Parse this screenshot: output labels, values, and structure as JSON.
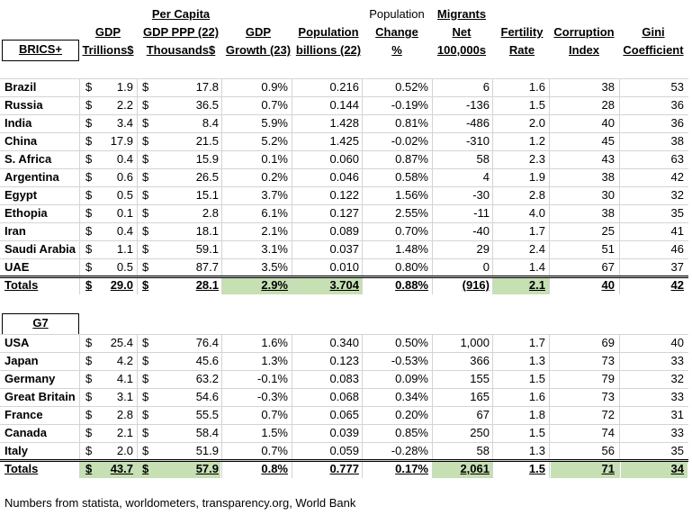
{
  "headers": {
    "group_label": "BRICS+",
    "gdp": [
      "GDP",
      "Trillions$"
    ],
    "per_capita": [
      "Per Capita",
      "GDP PPP (22)",
      "Thousands$"
    ],
    "growth": [
      "GDP",
      "Growth (23)"
    ],
    "population": [
      "Population",
      "billions (22)"
    ],
    "pop_change": [
      "Population",
      "Change",
      "%"
    ],
    "migrants": [
      "Migrants",
      "Net",
      "100,000s"
    ],
    "fertility": [
      "Fertility",
      "Rate"
    ],
    "corruption": [
      "Corruption",
      "Index"
    ],
    "gini": [
      "Gini",
      "Coefficient"
    ]
  },
  "currency_symbol": "$",
  "brics": {
    "label": "BRICS+",
    "rows": [
      {
        "country": "Brazil",
        "gdp": "1.9",
        "per_capita": "17.8",
        "growth": "0.9%",
        "population": "0.216",
        "pop_change": "0.52%",
        "migrants": "6",
        "fertility": "1.6",
        "corruption": "38",
        "gini": "53"
      },
      {
        "country": "Russia",
        "gdp": "2.2",
        "per_capita": "36.5",
        "growth": "0.7%",
        "population": "0.144",
        "pop_change": "-0.19%",
        "migrants": "-136",
        "fertility": "1.5",
        "corruption": "28",
        "gini": "36"
      },
      {
        "country": "India",
        "gdp": "3.4",
        "per_capita": "8.4",
        "growth": "5.9%",
        "population": "1.428",
        "pop_change": "0.81%",
        "migrants": "-486",
        "fertility": "2.0",
        "corruption": "40",
        "gini": "36"
      },
      {
        "country": "China",
        "gdp": "17.9",
        "per_capita": "21.5",
        "growth": "5.2%",
        "population": "1.425",
        "pop_change": "-0.02%",
        "migrants": "-310",
        "fertility": "1.2",
        "corruption": "45",
        "gini": "38"
      },
      {
        "country": "S. Africa",
        "gdp": "0.4",
        "per_capita": "15.9",
        "growth": "0.1%",
        "population": "0.060",
        "pop_change": "0.87%",
        "migrants": "58",
        "fertility": "2.3",
        "corruption": "43",
        "gini": "63"
      },
      {
        "country": "Argentina",
        "gdp": "0.6",
        "per_capita": "26.5",
        "growth": "0.2%",
        "population": "0.046",
        "pop_change": "0.58%",
        "migrants": "4",
        "fertility": "1.9",
        "corruption": "38",
        "gini": "42"
      },
      {
        "country": "Egypt",
        "gdp": "0.5",
        "per_capita": "15.1",
        "growth": "3.7%",
        "population": "0.122",
        "pop_change": "1.56%",
        "migrants": "-30",
        "fertility": "2.8",
        "corruption": "30",
        "gini": "32"
      },
      {
        "country": "Ethopia",
        "gdp": "0.1",
        "per_capita": "2.8",
        "growth": "6.1%",
        "population": "0.127",
        "pop_change": "2.55%",
        "migrants": "-11",
        "fertility": "4.0",
        "corruption": "38",
        "gini": "35"
      },
      {
        "country": "Iran",
        "gdp": "0.4",
        "per_capita": "18.1",
        "growth": "2.1%",
        "population": "0.089",
        "pop_change": "0.70%",
        "migrants": "-40",
        "fertility": "1.7",
        "corruption": "25",
        "gini": "41"
      },
      {
        "country": "Saudi Arabia",
        "gdp": "1.1",
        "per_capita": "59.1",
        "growth": "3.1%",
        "population": "0.037",
        "pop_change": "1.48%",
        "migrants": "29",
        "fertility": "2.4",
        "corruption": "51",
        "gini": "46"
      },
      {
        "country": "UAE",
        "gdp": "0.5",
        "per_capita": "87.7",
        "growth": "3.5%",
        "population": "0.010",
        "pop_change": "0.80%",
        "migrants": "0",
        "fertility": "1.4",
        "corruption": "67",
        "gini": "37"
      }
    ],
    "totals": {
      "label": "Totals",
      "gdp": "29.0",
      "per_capita": "28.1",
      "growth": "2.9%",
      "population": "3.704",
      "pop_change": "0.88%",
      "migrants": "(916)",
      "fertility": "2.1",
      "corruption": "40",
      "gini": "42"
    },
    "highlight_color": "#c6e0b4",
    "highlighted_totals": [
      "growth",
      "population",
      "fertility"
    ]
  },
  "g7": {
    "label": "G7",
    "rows": [
      {
        "country": "USA",
        "gdp": "25.4",
        "per_capita": "76.4",
        "growth": "1.6%",
        "population": "0.340",
        "pop_change": "0.50%",
        "migrants": "1,000",
        "fertility": "1.7",
        "corruption": "69",
        "gini": "40"
      },
      {
        "country": "Japan",
        "gdp": "4.2",
        "per_capita": "45.6",
        "growth": "1.3%",
        "population": "0.123",
        "pop_change": "-0.53%",
        "migrants": "366",
        "fertility": "1.3",
        "corruption": "73",
        "gini": "33"
      },
      {
        "country": "Germany",
        "gdp": "4.1",
        "per_capita": "63.2",
        "growth": "-0.1%",
        "population": "0.083",
        "pop_change": "0.09%",
        "migrants": "155",
        "fertility": "1.5",
        "corruption": "79",
        "gini": "32"
      },
      {
        "country": "Great Britain",
        "gdp": "3.1",
        "per_capita": "54.6",
        "growth": "-0.3%",
        "population": "0.068",
        "pop_change": "0.34%",
        "migrants": "165",
        "fertility": "1.6",
        "corruption": "73",
        "gini": "33"
      },
      {
        "country": "France",
        "gdp": "2.8",
        "per_capita": "55.5",
        "growth": "0.7%",
        "population": "0.065",
        "pop_change": "0.20%",
        "migrants": "67",
        "fertility": "1.8",
        "corruption": "72",
        "gini": "31"
      },
      {
        "country": "Canada",
        "gdp": "2.1",
        "per_capita": "58.4",
        "growth": "1.5%",
        "population": "0.039",
        "pop_change": "0.85%",
        "migrants": "250",
        "fertility": "1.5",
        "corruption": "74",
        "gini": "33"
      },
      {
        "country": "Italy",
        "gdp": "2.0",
        "per_capita": "51.9",
        "growth": "0.7%",
        "population": "0.059",
        "pop_change": "-0.28%",
        "migrants": "58",
        "fertility": "1.3",
        "corruption": "56",
        "gini": "35"
      }
    ],
    "totals": {
      "label": "Totals",
      "gdp": "43.7",
      "per_capita": "57.9",
      "growth": "0.8%",
      "population": "0.777",
      "pop_change": "0.17%",
      "migrants": "2,061",
      "fertility": "1.5",
      "corruption": "71",
      "gini": "34"
    },
    "highlight_color": "#c6e0b4",
    "highlighted_totals": [
      "gdp",
      "per_capita",
      "migrants",
      "corruption",
      "gini"
    ]
  },
  "footer": "Numbers from statista, worldometers, transparency.org, World Bank"
}
